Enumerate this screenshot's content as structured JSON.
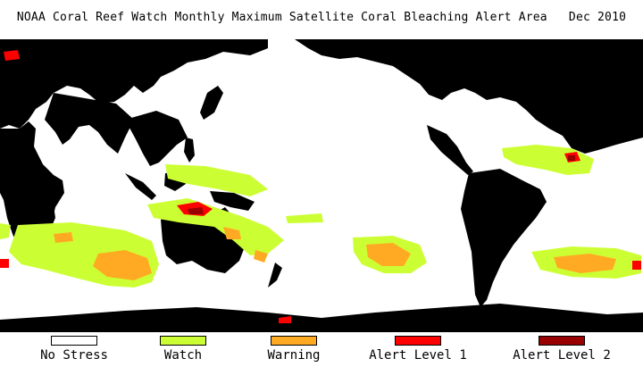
{
  "title": "NOAA Coral Reef Watch Monthly Maximum Satellite Coral Bleaching Alert Area   Dec 2010",
  "legend": [
    {
      "label": "No Stress",
      "color": "#ffffff"
    },
    {
      "label": "Watch",
      "color": "#ccff33"
    },
    {
      "label": "Warning",
      "color": "#ffaa22"
    },
    {
      "label": "Alert Level 1",
      "color": "#ff0000"
    },
    {
      "label": "Alert Level 2",
      "color": "#990000"
    }
  ],
  "colors": {
    "land": "#000000",
    "ocean": "#ffffff",
    "watch": "#ccff33",
    "warning": "#ffaa22",
    "alert1": "#ff0000",
    "alert2": "#990000"
  }
}
